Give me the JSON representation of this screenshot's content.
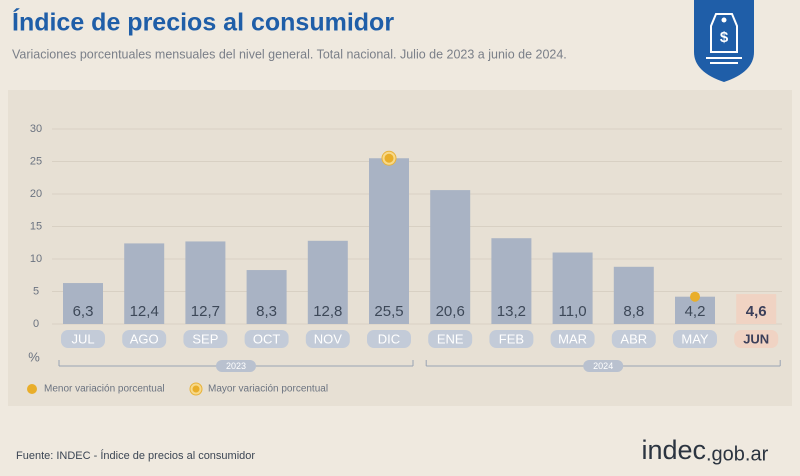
{
  "header": {
    "title": "Índice de precios al consumidor",
    "subtitle": "Variaciones porcentuales mensuales del nivel general. Total nacional. Julio de 2023 a junio de 2024."
  },
  "chart_data": {
    "type": "bar",
    "categories": [
      "JUL",
      "AGO",
      "SEP",
      "OCT",
      "NOV",
      "DIC",
      "ENE",
      "FEB",
      "MAR",
      "ABR",
      "MAY",
      "JUN"
    ],
    "values": [
      6.3,
      12.4,
      12.7,
      8.3,
      12.8,
      25.5,
      20.6,
      13.2,
      11.0,
      8.8,
      4.2,
      4.6
    ],
    "value_labels": [
      "6,3",
      "12,4",
      "12,7",
      "8,3",
      "12,8",
      "25,5",
      "20,6",
      "13,2",
      "11,0",
      "8,8",
      "4,2",
      "4,6"
    ],
    "color": "#a9b3c4",
    "highlight_color": "#f0d3c3",
    "ylim": [
      0,
      30
    ],
    "yticks": [
      0,
      5,
      10,
      15,
      20,
      25,
      30
    ],
    "y_unit": "%",
    "grid": true,
    "year_groups": [
      "2023",
      "2024"
    ],
    "legend": {
      "min": "Menor variación porcentual",
      "max": "Mayor variación porcentual"
    }
  },
  "footer": {
    "source": "Fuente: INDEC - Índice de precios al consumidor",
    "logo_main": "indec",
    "logo_suffix": ".gob.ar"
  }
}
